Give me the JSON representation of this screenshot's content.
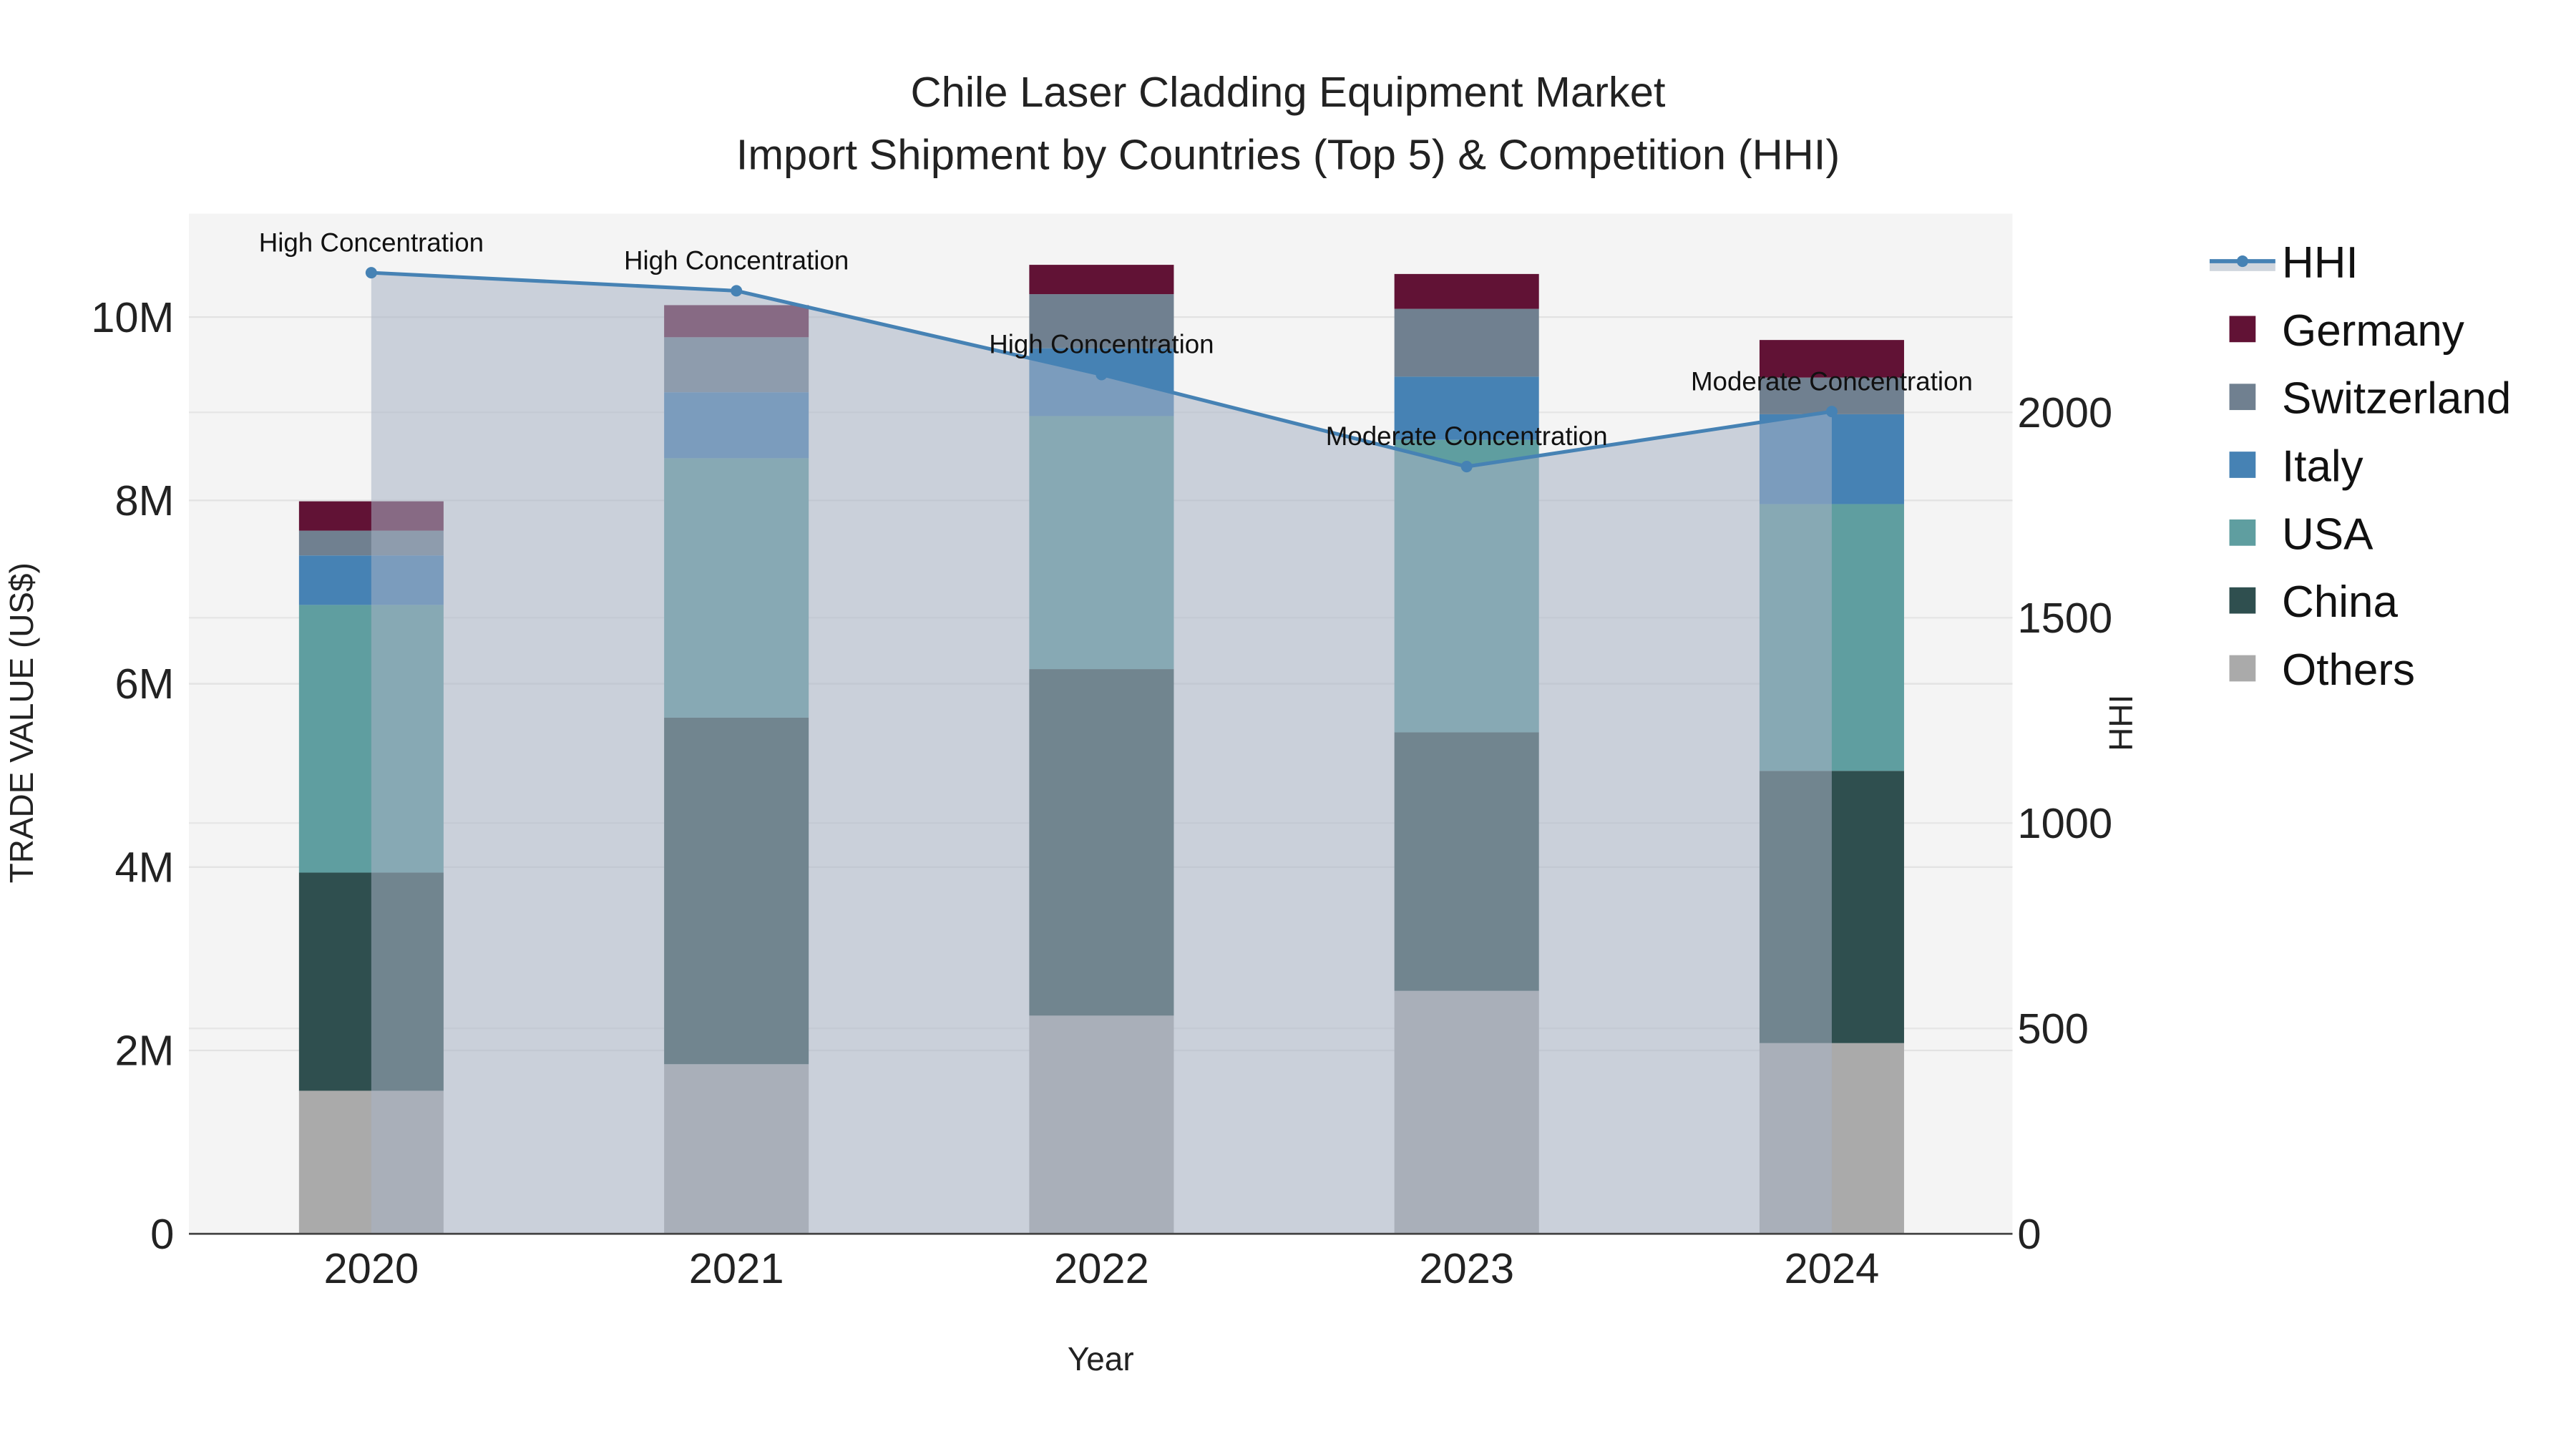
{
  "chart_data": {
    "type": "bar",
    "title": "Chile Laser Cladding Equipment Market",
    "subtitle": "Import Shipment by Countries (Top 5) & Competition (HHI)",
    "xlabel": "Year",
    "ylabel": "TRADE VALUE (US$)",
    "y2label": "HHI",
    "categories": [
      "2020",
      "2021",
      "2022",
      "2023",
      "2024"
    ],
    "ylim": [
      0,
      11100000
    ],
    "y2lim": [
      0,
      2480
    ],
    "yticks": [
      {
        "v": 0,
        "label": "0"
      },
      {
        "v": 2000000,
        "label": "2M"
      },
      {
        "v": 4000000,
        "label": "4M"
      },
      {
        "v": 6000000,
        "label": "6M"
      },
      {
        "v": 8000000,
        "label": "8M"
      },
      {
        "v": 10000000,
        "label": "10M"
      }
    ],
    "y2ticks": [
      {
        "v": 0,
        "label": "0"
      },
      {
        "v": 500,
        "label": "500"
      },
      {
        "v": 1000,
        "label": "1000"
      },
      {
        "v": 1500,
        "label": "1500"
      },
      {
        "v": 2000,
        "label": "2000"
      }
    ],
    "stacked": true,
    "series": [
      {
        "name": "Others",
        "color": "#aaaaaa",
        "values": [
          1560000,
          1850000,
          2380000,
          2650000,
          2080000
        ]
      },
      {
        "name": "China",
        "color": "#2f4f4f",
        "values": [
          2380000,
          3780000,
          3780000,
          2820000,
          2970000
        ]
      },
      {
        "name": "USA",
        "color": "#5f9ea0",
        "values": [
          2920000,
          2830000,
          2760000,
          3190000,
          2910000
        ]
      },
      {
        "name": "Italy",
        "color": "#4682b4",
        "values": [
          540000,
          720000,
          740000,
          690000,
          980000
        ]
      },
      {
        "name": "Switzerland",
        "color": "#708090",
        "values": [
          270000,
          600000,
          590000,
          740000,
          400000
        ]
      },
      {
        "name": "Germany",
        "color": "#611235",
        "values": [
          320000,
          350000,
          320000,
          380000,
          410000
        ]
      }
    ],
    "line": {
      "name": "HHI",
      "color": "#4682b4",
      "values": [
        2340,
        2296,
        2092,
        1868,
        2002
      ],
      "annotations": [
        "High Concentration",
        "High Concentration",
        "High Concentration",
        "Moderate Concentration",
        "Moderate Concentration"
      ]
    },
    "legend_order": [
      "HHI",
      "Germany",
      "Switzerland",
      "Italy",
      "USA",
      "China",
      "Others"
    ],
    "legend_position": "right"
  }
}
